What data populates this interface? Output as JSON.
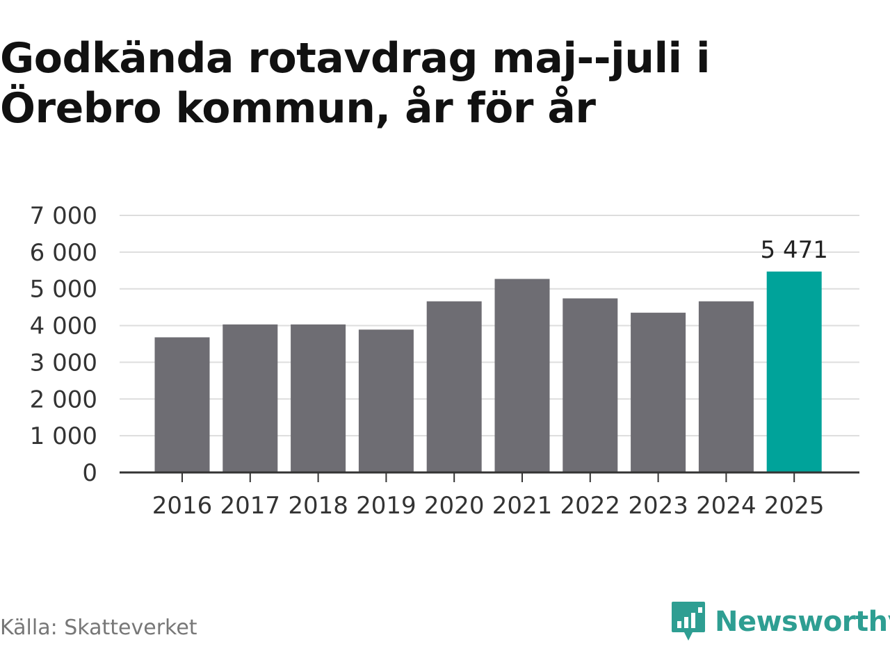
{
  "title": "Godkända rotavdrag maj--juli i Örebro kommun, år för år",
  "source": "Källa: Skatteverket",
  "brand": {
    "name": "Newsworthy",
    "icon": "newsworthy-logo-icon",
    "color": "#2e9e92"
  },
  "colors": {
    "bar": "#6e6d73",
    "highlight": "#00a39a",
    "grid": "#dddddd",
    "axis": "#333333"
  },
  "chart_data": {
    "type": "bar",
    "categories": [
      "2016",
      "2017",
      "2018",
      "2019",
      "2020",
      "2021",
      "2022",
      "2023",
      "2024",
      "2025"
    ],
    "values": [
      3680,
      4030,
      4030,
      3890,
      4660,
      5270,
      4740,
      4350,
      4660,
      5471
    ],
    "highlight_index": 9,
    "data_labels": [
      {
        "index": 9,
        "text": "5 471"
      }
    ],
    "yticks": [
      {
        "value": 0,
        "label": "0"
      },
      {
        "value": 1000,
        "label": "1 000"
      },
      {
        "value": 2000,
        "label": "2 000"
      },
      {
        "value": 3000,
        "label": "3 000"
      },
      {
        "value": 4000,
        "label": "4 000"
      },
      {
        "value": 5000,
        "label": "5 000"
      },
      {
        "value": 6000,
        "label": "6 000"
      },
      {
        "value": 7000,
        "label": "7 000"
      }
    ],
    "ylim": [
      0,
      7000
    ],
    "grid": true,
    "legend": "none"
  }
}
